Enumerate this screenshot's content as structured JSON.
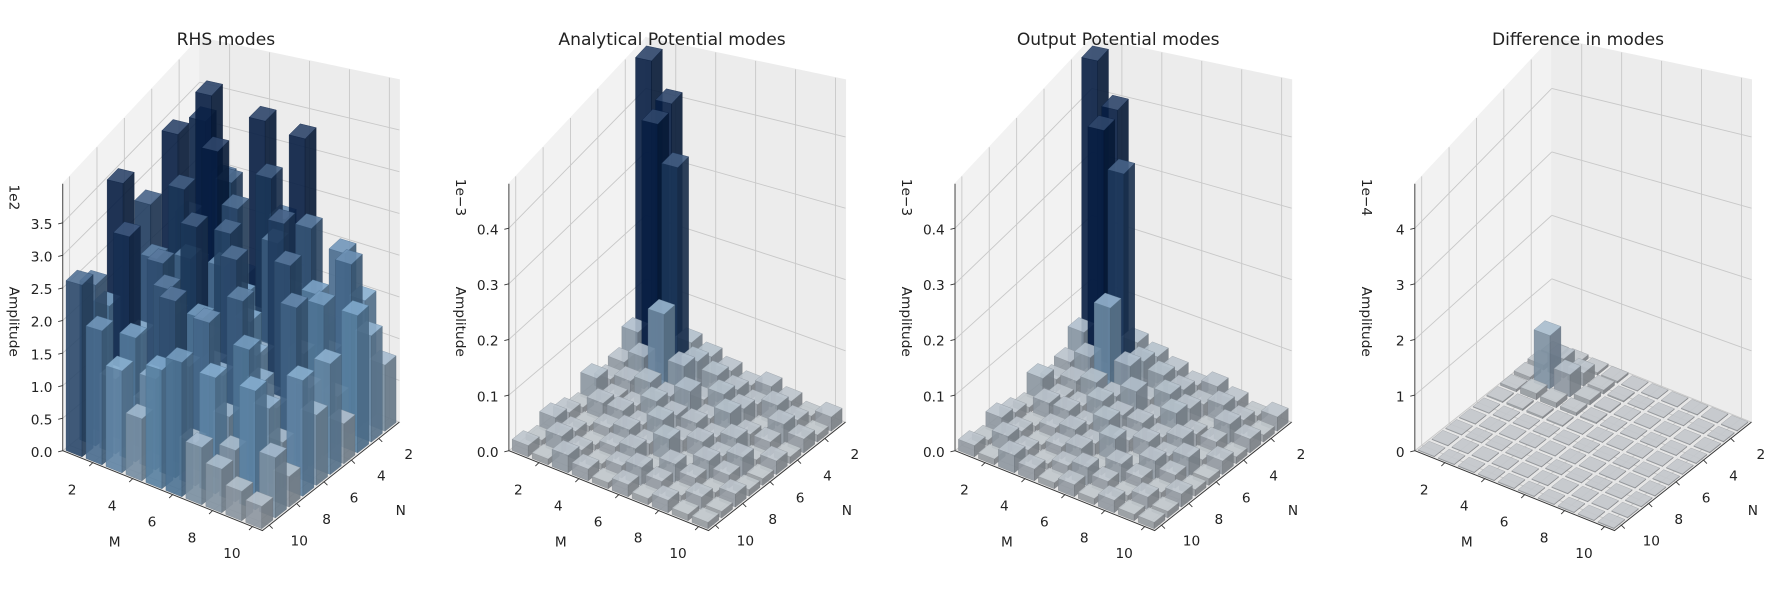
{
  "chart_data": [
    {
      "type": "bar3d",
      "title": "RHS modes",
      "xlabel": "M",
      "ylabel": "N",
      "zlabel": "Amplitude",
      "offset_text": "1e2",
      "x": [
        1,
        2,
        3,
        4,
        5,
        6,
        7,
        8,
        9,
        10
      ],
      "y": [
        1,
        2,
        3,
        4,
        5,
        6,
        7,
        8,
        9,
        10
      ],
      "xlim": [
        0.5,
        10.5
      ],
      "ylim": [
        0.5,
        10.5
      ],
      "zlim": [
        0,
        4.1
      ],
      "xticks": [
        2,
        4,
        6,
        8,
        10
      ],
      "yticks": [
        2,
        4,
        6,
        8,
        10
      ],
      "zticks": [
        {
          "value": 0,
          "label": "0.0"
        },
        0.5,
        {
          "value": 1,
          "label": "1.0"
        },
        1.5,
        {
          "value": 2,
          "label": "2.0"
        },
        2.5,
        {
          "value": 3,
          "label": "3.0"
        },
        3.5
      ],
      "colormap": [
        "#b9bdc2",
        "#6f9fc8",
        "#0a2550"
      ],
      "grid": true,
      "z": [
        [
          3.2,
          2.1,
          3.4,
          1.2,
          2.8,
          0.6,
          3.5,
          1.9,
          2.4,
          2.6
        ],
        [
          2.5,
          3.8,
          1.7,
          2.9,
          0.9,
          2.3,
          1.4,
          3.0,
          1.1,
          2.0
        ],
        [
          1.3,
          2.7,
          3.3,
          0.8,
          2.2,
          1.6,
          2.5,
          0.7,
          1.8,
          1.5
        ],
        [
          3.4,
          1.0,
          2.6,
          2.0,
          1.2,
          2.9,
          0.5,
          2.4,
          1.3,
          0.9
        ],
        [
          2.2,
          2.9,
          0.8,
          1.7,
          2.7,
          1.1,
          1.9,
          1.4,
          2.5,
          1.7
        ],
        [
          3.3,
          1.5,
          2.3,
          1.0,
          1.6,
          2.6,
          1.2,
          2.1,
          0.6,
          1.9
        ],
        [
          1.0,
          2.4,
          1.5,
          2.8,
          0.7,
          1.4,
          2.3,
          0.9,
          1.6,
          0.8
        ],
        [
          2.0,
          0.9,
          1.8,
          1.2,
          2.5,
          0.8,
          1.3,
          1.9,
          0.7,
          0.6
        ],
        [
          1.5,
          2.1,
          0.6,
          1.9,
          1.0,
          2.2,
          0.6,
          1.2,
          1.6,
          0.4
        ],
        [
          0.8,
          1.3,
          1.7,
          0.5,
          1.4,
          0.9,
          1.5,
          0.4,
          0.8,
          0.3
        ]
      ]
    },
    {
      "type": "bar3d",
      "title": "Analytical Potential modes",
      "xlabel": "M",
      "ylabel": "N",
      "zlabel": "Amplitude",
      "offset_text": "1e−3",
      "x": [
        1,
        2,
        3,
        4,
        5,
        6,
        7,
        8,
        9,
        10
      ],
      "y": [
        1,
        2,
        3,
        4,
        5,
        6,
        7,
        8,
        9,
        10
      ],
      "xlim": [
        0.5,
        10.5
      ],
      "ylim": [
        0.5,
        10.5
      ],
      "zlim": [
        0,
        0.48
      ],
      "xticks": [
        2,
        4,
        6,
        8,
        10
      ],
      "yticks": [
        2,
        4,
        6,
        8,
        10
      ],
      "zticks": [
        {
          "value": 0,
          "label": "0.0"
        },
        0.1,
        0.2,
        0.3,
        0.4
      ],
      "colormap": [
        "#b9bdc2",
        "#6f9fc8",
        "#0a2550"
      ],
      "grid": true,
      "z": [
        [
          0.47,
          0.06,
          0.03,
          0.02,
          0.04,
          0.01,
          0.02,
          0.03,
          0.01,
          0.02
        ],
        [
          0.41,
          0.4,
          0.05,
          0.03,
          0.02,
          0.03,
          0.01,
          0.02,
          0.03,
          0.01
        ],
        [
          0.05,
          0.34,
          0.13,
          0.04,
          0.02,
          0.03,
          0.02,
          0.01,
          0.02,
          0.03
        ],
        [
          0.04,
          0.05,
          0.06,
          0.03,
          0.04,
          0.02,
          0.03,
          0.02,
          0.01,
          0.02
        ],
        [
          0.03,
          0.04,
          0.02,
          0.05,
          0.03,
          0.04,
          0.02,
          0.03,
          0.02,
          0.01
        ],
        [
          0.02,
          0.03,
          0.04,
          0.02,
          0.03,
          0.02,
          0.04,
          0.01,
          0.03,
          0.02
        ],
        [
          0.03,
          0.02,
          0.03,
          0.04,
          0.02,
          0.03,
          0.01,
          0.03,
          0.02,
          0.01
        ],
        [
          0.02,
          0.03,
          0.01,
          0.02,
          0.03,
          0.02,
          0.03,
          0.02,
          0.01,
          0.02
        ],
        [
          0.01,
          0.02,
          0.03,
          0.02,
          0.01,
          0.03,
          0.02,
          0.01,
          0.02,
          0.01
        ],
        [
          0.02,
          0.01,
          0.02,
          0.01,
          0.02,
          0.01,
          0.01,
          0.02,
          0.01,
          0.01
        ]
      ]
    },
    {
      "type": "bar3d",
      "title": "Output Potential modes",
      "xlabel": "M",
      "ylabel": "N",
      "zlabel": "Amplitude",
      "offset_text": "1e−3",
      "x": [
        1,
        2,
        3,
        4,
        5,
        6,
        7,
        8,
        9,
        10
      ],
      "y": [
        1,
        2,
        3,
        4,
        5,
        6,
        7,
        8,
        9,
        10
      ],
      "xlim": [
        0.5,
        10.5
      ],
      "ylim": [
        0.5,
        10.5
      ],
      "zlim": [
        0,
        0.48
      ],
      "xticks": [
        2,
        4,
        6,
        8,
        10
      ],
      "yticks": [
        2,
        4,
        6,
        8,
        10
      ],
      "zticks": [
        {
          "value": 0,
          "label": "0.0"
        },
        0.1,
        0.2,
        0.3,
        0.4
      ],
      "colormap": [
        "#b9bdc2",
        "#6f9fc8",
        "#0a2550"
      ],
      "grid": true,
      "z": [
        [
          0.47,
          0.06,
          0.03,
          0.02,
          0.04,
          0.01,
          0.02,
          0.03,
          0.01,
          0.02
        ],
        [
          0.4,
          0.39,
          0.05,
          0.03,
          0.02,
          0.03,
          0.01,
          0.02,
          0.03,
          0.01
        ],
        [
          0.05,
          0.33,
          0.14,
          0.04,
          0.02,
          0.03,
          0.02,
          0.01,
          0.02,
          0.03
        ],
        [
          0.04,
          0.05,
          0.06,
          0.03,
          0.04,
          0.02,
          0.03,
          0.02,
          0.01,
          0.02
        ],
        [
          0.03,
          0.04,
          0.02,
          0.05,
          0.03,
          0.04,
          0.02,
          0.03,
          0.02,
          0.01
        ],
        [
          0.02,
          0.03,
          0.04,
          0.02,
          0.03,
          0.02,
          0.04,
          0.01,
          0.03,
          0.02
        ],
        [
          0.03,
          0.02,
          0.03,
          0.04,
          0.02,
          0.03,
          0.01,
          0.03,
          0.02,
          0.01
        ],
        [
          0.02,
          0.03,
          0.01,
          0.02,
          0.03,
          0.02,
          0.03,
          0.02,
          0.01,
          0.02
        ],
        [
          0.01,
          0.02,
          0.03,
          0.02,
          0.01,
          0.03,
          0.02,
          0.01,
          0.02,
          0.01
        ],
        [
          0.02,
          0.01,
          0.02,
          0.01,
          0.02,
          0.01,
          0.01,
          0.02,
          0.01,
          0.01
        ]
      ]
    },
    {
      "type": "bar3d",
      "title": "Difference in modes",
      "xlabel": "M",
      "ylabel": "N",
      "zlabel": "Amplitude",
      "offset_text": "1e−4",
      "x": [
        1,
        2,
        3,
        4,
        5,
        6,
        7,
        8,
        9,
        10
      ],
      "y": [
        1,
        2,
        3,
        4,
        5,
        6,
        7,
        8,
        9,
        10
      ],
      "xlim": [
        0.5,
        10.5
      ],
      "ylim": [
        0.5,
        10.5
      ],
      "zlim": [
        0,
        4.8
      ],
      "xticks": [
        2,
        4,
        6,
        8,
        10
      ],
      "yticks": [
        2,
        4,
        6,
        8,
        10
      ],
      "zticks": [
        0,
        1,
        2,
        3,
        4
      ],
      "colormap": [
        "#b9bdc2",
        "#6f9fc8",
        "#0a2550"
      ],
      "grid": true,
      "z": [
        [
          0.05,
          0.08,
          0.06,
          0.04,
          0.02,
          0.01,
          0.01,
          0.01,
          0.01,
          0.01
        ],
        [
          0.06,
          0.3,
          0.85,
          0.1,
          0.03,
          0.01,
          0.01,
          0.01,
          0.01,
          0.01
        ],
        [
          0.04,
          0.2,
          0.35,
          0.08,
          0.03,
          0.01,
          0.01,
          0.01,
          0.01,
          0.01
        ],
        [
          0.03,
          0.06,
          0.07,
          0.05,
          0.02,
          0.01,
          0.01,
          0.01,
          0.01,
          0.01
        ],
        [
          0.01,
          0.02,
          0.02,
          0.02,
          0.01,
          0.01,
          0.01,
          0.01,
          0.01,
          0.01
        ],
        [
          0.01,
          0.01,
          0.01,
          0.01,
          0.01,
          0.01,
          0.01,
          0.01,
          0.01,
          0.01
        ],
        [
          0.01,
          0.01,
          0.01,
          0.01,
          0.01,
          0.01,
          0.01,
          0.01,
          0.01,
          0.01
        ],
        [
          0.01,
          0.01,
          0.01,
          0.01,
          0.01,
          0.01,
          0.01,
          0.01,
          0.01,
          0.01
        ],
        [
          0.01,
          0.01,
          0.01,
          0.01,
          0.01,
          0.01,
          0.01,
          0.01,
          0.01,
          0.01
        ],
        [
          0.01,
          0.01,
          0.01,
          0.01,
          0.01,
          0.01,
          0.01,
          0.01,
          0.01,
          0.01
        ]
      ]
    }
  ]
}
